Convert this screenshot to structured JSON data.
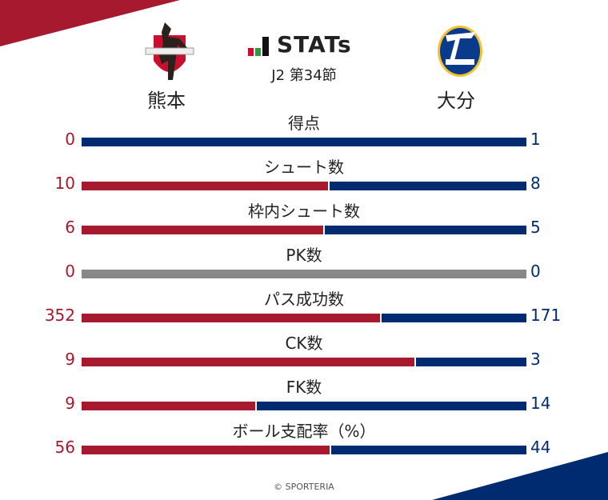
{
  "header": {
    "title": "STATs",
    "round": "J2 第34節"
  },
  "teams": {
    "home": {
      "name": "熊本",
      "logo_text": "ROASSO KUMAMOTO"
    },
    "away": {
      "name": "大分",
      "logo_text": "TRINITA"
    }
  },
  "colors": {
    "home": "#a6192e",
    "away": "#002b70",
    "neutral": "#888888"
  },
  "chart_data": {
    "type": "bar",
    "categories": [
      "得点",
      "シュート数",
      "枠内シュート数",
      "PK数",
      "パス成功数",
      "CK数",
      "FK数",
      "ボール支配率（%）"
    ],
    "series": [
      {
        "name": "熊本",
        "values": [
          0,
          10,
          6,
          0,
          352,
          9,
          9,
          56
        ]
      },
      {
        "name": "大分",
        "values": [
          1,
          8,
          5,
          0,
          171,
          3,
          14,
          44
        ]
      }
    ]
  },
  "footer": {
    "credit": "© SPORTERIA"
  }
}
